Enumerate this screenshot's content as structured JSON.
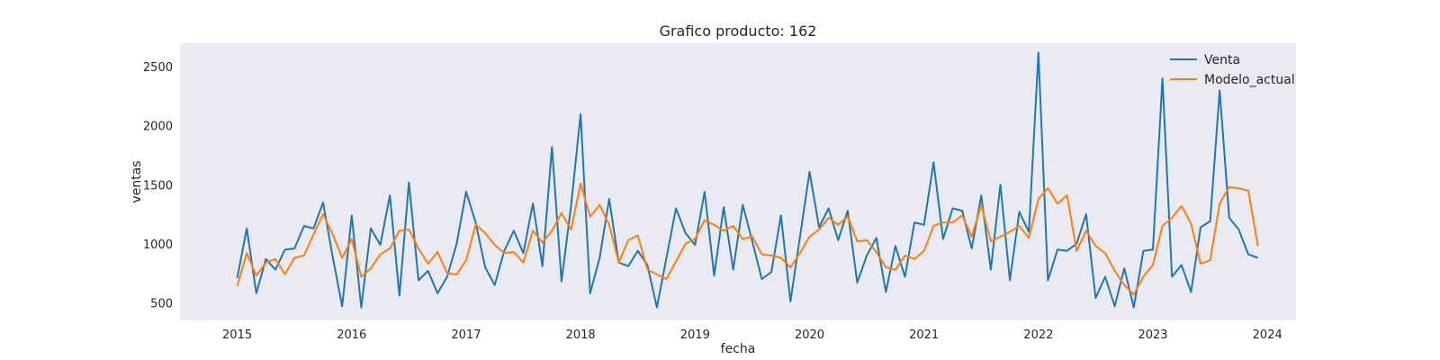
{
  "chart_data": {
    "type": "line",
    "title": "Grafico producto: 162",
    "xlabel": "fecha",
    "ylabel": "ventas",
    "x_start": "2015-01",
    "x_ticks": [
      "2015",
      "2016",
      "2017",
      "2018",
      "2019",
      "2020",
      "2021",
      "2022",
      "2023",
      "2024"
    ],
    "y_ticks": [
      500,
      1000,
      1500,
      2000,
      2500
    ],
    "xlim": [
      "2014-07",
      "2024-04"
    ],
    "ylim": [
      350,
      2700
    ],
    "grid": false,
    "legend_position": "top-right",
    "colors": {
      "plot_bg": "#EAEAF2",
      "venta": "#1F77B4",
      "modelo": "#FF7F0E"
    },
    "series": [
      {
        "name": "Venta",
        "values": [
          710,
          1130,
          580,
          870,
          780,
          950,
          960,
          1150,
          1130,
          1350,
          890,
          470,
          1240,
          460,
          1130,
          990,
          1410,
          560,
          1520,
          690,
          770,
          580,
          720,
          1000,
          1440,
          1180,
          800,
          650,
          940,
          1110,
          920,
          1340,
          810,
          1820,
          680,
          1320,
          2100,
          580,
          880,
          1380,
          840,
          810,
          940,
          820,
          460,
          880,
          1300,
          1090,
          990,
          1440,
          730,
          1310,
          780,
          1330,
          1020,
          700,
          760,
          1240,
          510,
          1060,
          1610,
          1140,
          1300,
          1030,
          1280,
          670,
          900,
          1050,
          590,
          980,
          720,
          1180,
          1160,
          1690,
          1040,
          1300,
          1280,
          960,
          1410,
          780,
          1500,
          690,
          1270,
          1100,
          2620,
          690,
          950,
          940,
          1000,
          1250,
          540,
          720,
          470,
          790,
          460,
          940,
          950,
          2400,
          720,
          820,
          590,
          1140,
          1190,
          2300,
          1220,
          1120,
          910,
          880
        ],
        "color": "#1F77B4"
      },
      {
        "name": "Modelo_actual",
        "values": [
          640,
          920,
          730,
          840,
          870,
          740,
          880,
          900,
          1080,
          1250,
          1080,
          880,
          1040,
          720,
          790,
          910,
          960,
          1110,
          1120,
          960,
          830,
          930,
          750,
          740,
          860,
          1160,
          1090,
          990,
          920,
          930,
          840,
          1110,
          1010,
          1110,
          1260,
          1120,
          1510,
          1230,
          1330,
          1160,
          840,
          1030,
          1070,
          780,
          740,
          700,
          850,
          1000,
          1040,
          1200,
          1160,
          1110,
          1150,
          1040,
          1060,
          910,
          900,
          880,
          800,
          920,
          1060,
          1120,
          1220,
          1160,
          1230,
          1020,
          1030,
          930,
          800,
          780,
          900,
          870,
          940,
          1150,
          1180,
          1180,
          1240,
          1060,
          1330,
          1020,
          1060,
          1100,
          1150,
          1050,
          1380,
          1470,
          1340,
          1410,
          940,
          1110,
          980,
          920,
          770,
          650,
          570,
          720,
          820,
          1150,
          1220,
          1320,
          1170,
          830,
          860,
          1340,
          1480,
          1470,
          1450,
          980
        ],
        "color": "#FF7F0E"
      }
    ]
  }
}
